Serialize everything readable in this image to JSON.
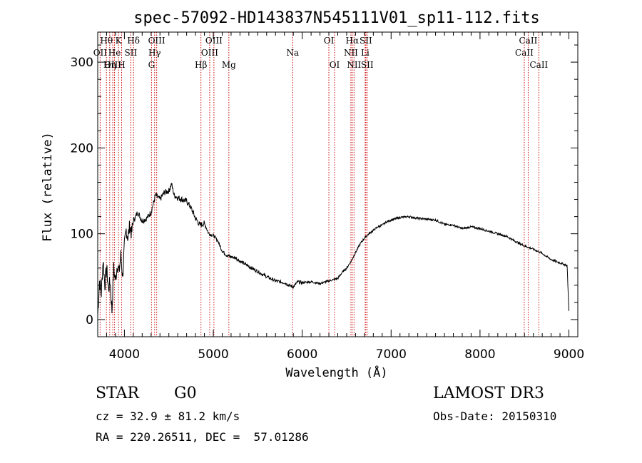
{
  "title": "spec-57092-HD143837N545111V01_sp11-112.fits",
  "colors": {
    "line_marker": "#cc0000",
    "spectrum": "#000000",
    "axes": "#000000"
  },
  "chart_data": {
    "type": "line",
    "title": "spec-57092-HD143837N545111V01_sp11-112.fits",
    "xlabel": "Wavelength (Å)",
    "ylabel": "Flux (relative)",
    "xlim": [
      3700,
      9100
    ],
    "ylim": [
      -20,
      335
    ],
    "x_ticks": [
      4000,
      5000,
      6000,
      7000,
      8000,
      9000
    ],
    "y_ticks": [
      0,
      100,
      200,
      300
    ],
    "series": [
      {
        "x": [
          3700,
          3720,
          3740,
          3760,
          3780,
          3800,
          3820,
          3840,
          3860,
          3880,
          3900,
          3920,
          3940,
          3960,
          3980,
          4000,
          4020,
          4040,
          4060,
          4080,
          4100,
          4150,
          4200,
          4250,
          4300,
          4350,
          4400,
          4450,
          4500,
          4530,
          4560,
          4600,
          4650,
          4700,
          4750,
          4800,
          4850,
          4900,
          4950,
          5000,
          5050,
          5100,
          5150,
          5200,
          5250,
          5300,
          5400,
          5500,
          5600,
          5700,
          5800,
          5850,
          5900,
          5950,
          6000,
          6100,
          6200,
          6300,
          6400,
          6450,
          6500,
          6550,
          6600,
          6650,
          6700,
          6750,
          6800,
          6850,
          6900,
          6950,
          7000,
          7100,
          7200,
          7300,
          7400,
          7500,
          7600,
          7700,
          7800,
          7900,
          8000,
          8100,
          8200,
          8300,
          8400,
          8500,
          8600,
          8700,
          8800,
          8900,
          8980,
          9000
        ],
        "y": [
          5,
          45,
          30,
          70,
          40,
          60,
          35,
          45,
          10,
          60,
          45,
          65,
          55,
          75,
          50,
          85,
          105,
          95,
          110,
          100,
          115,
          125,
          115,
          118,
          125,
          145,
          140,
          148,
          150,
          158,
          145,
          142,
          140,
          138,
          130,
          118,
          110,
          112,
          100,
          98,
          92,
          80,
          75,
          73,
          72,
          68,
          62,
          56,
          50,
          45,
          43,
          40,
          38,
          44,
          43,
          44,
          42,
          45,
          48,
          55,
          60,
          68,
          78,
          88,
          95,
          100,
          104,
          108,
          110,
          114,
          116,
          119,
          120,
          118,
          117,
          116,
          111,
          110,
          106,
          108,
          106,
          103,
          100,
          97,
          91,
          86,
          82,
          77,
          70,
          66,
          63,
          10
        ]
      }
    ],
    "annotations": [
      {
        "label": "Hθ",
        "x": 3798,
        "row": 1
      },
      {
        "label": "OII",
        "x": 3727,
        "row": 2
      },
      {
        "label": "OIII",
        "x": 3869,
        "row": 3
      },
      {
        "label": "He",
        "x": 3889,
        "row": 2
      },
      {
        "label": "K",
        "x": 3934,
        "row": 1
      },
      {
        "label": "Hη",
        "x": 3835,
        "row": 3
      },
      {
        "label": "H",
        "x": 3969,
        "row": 3
      },
      {
        "label": "SII",
        "x": 4072,
        "row": 2
      },
      {
        "label": "Hδ",
        "x": 4102,
        "row": 1
      },
      {
        "label": "OIII",
        "x": 4363,
        "row": 1
      },
      {
        "label": "Hγ",
        "x": 4340,
        "row": 2
      },
      {
        "label": "G",
        "x": 4305,
        "row": 3
      },
      {
        "label": "Hβ",
        "x": 4861,
        "row": 3
      },
      {
        "label": "OIII",
        "x": 4959,
        "row": 2
      },
      {
        "label": "OIII",
        "x": 5007,
        "row": 1
      },
      {
        "label": "Mg",
        "x": 5175,
        "row": 3
      },
      {
        "label": "Na",
        "x": 5893,
        "row": 2
      },
      {
        "label": "OI",
        "x": 6300,
        "row": 1
      },
      {
        "label": "OI",
        "x": 6364,
        "row": 3
      },
      {
        "label": "Hα",
        "x": 6563,
        "row": 1
      },
      {
        "label": "NII",
        "x": 6548,
        "row": 2
      },
      {
        "label": "NII",
        "x": 6583,
        "row": 3
      },
      {
        "label": "SII",
        "x": 6716,
        "row": 1
      },
      {
        "label": "Li",
        "x": 6708,
        "row": 2
      },
      {
        "label": "SII",
        "x": 6731,
        "row": 3
      },
      {
        "label": "CaII",
        "x": 8542,
        "row": 1
      },
      {
        "label": "CaII",
        "x": 8498,
        "row": 2
      },
      {
        "label": "CaII",
        "x": 8662,
        "row": 3
      }
    ]
  },
  "info": {
    "object_class": "STAR",
    "subclass": "G0",
    "survey": "LAMOST DR3",
    "redshift": "cz = 32.9 ± 81.2 km/s",
    "obs_date": "Obs-Date: 20150310",
    "coords": "RA = 220.26511, DEC =  57.01286"
  }
}
